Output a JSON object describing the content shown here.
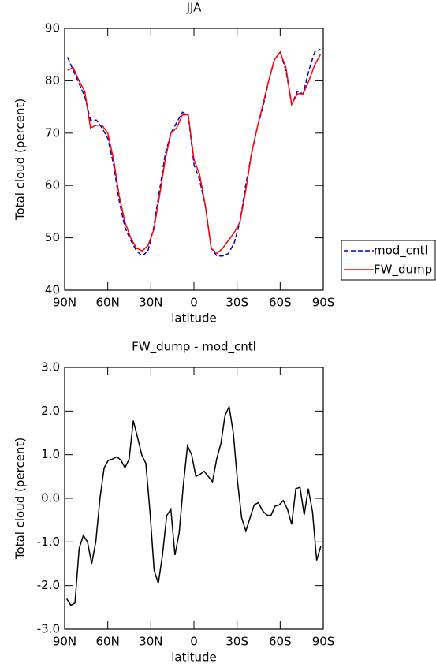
{
  "chart_data": [
    {
      "type": "line",
      "title": "JJA",
      "xlabel": "latitude",
      "ylabel": "Total cloud (percent)",
      "x": [
        88,
        84,
        80,
        76,
        72,
        68,
        64,
        60,
        56,
        52,
        48,
        44,
        40,
        36,
        32,
        28,
        24,
        20,
        16,
        12,
        8,
        4,
        0,
        -4,
        -8,
        -12,
        -16,
        -20,
        -24,
        -28,
        -32,
        -36,
        -40,
        -44,
        -48,
        -52,
        -56,
        -60,
        -64,
        -68,
        -72,
        -76,
        -80,
        -84,
        -88
      ],
      "series": [
        {
          "name": "mod_cntl",
          "color": "#0000cc",
          "dash": true,
          "values": [
            84.5,
            82,
            79.5,
            77,
            72.5,
            72.5,
            71,
            69,
            64,
            57,
            52,
            49.5,
            47.5,
            46.5,
            47.5,
            52,
            59,
            66,
            70,
            72,
            74,
            73.5,
            64,
            61,
            56,
            48,
            46.5,
            46.5,
            47,
            49,
            53,
            60,
            66,
            71,
            75,
            80,
            84,
            85.5,
            82,
            75.5,
            78,
            77.5,
            82,
            85.5,
            86
          ]
        },
        {
          "name": "FW_dump",
          "color": "#ff0000",
          "dash": false,
          "values": [
            82,
            82.5,
            80,
            78,
            71,
            71.5,
            71.5,
            70,
            65,
            58,
            53,
            50,
            48,
            47.5,
            48.5,
            51.5,
            58,
            65,
            70,
            71,
            73.5,
            73.5,
            65,
            62,
            56,
            48,
            47,
            48,
            49.5,
            51,
            53,
            59,
            66,
            71,
            75.5,
            80,
            84,
            85.5,
            82.5,
            75.5,
            77.5,
            77.5,
            80,
            83,
            85
          ]
        }
      ],
      "xlim": [
        90,
        -90
      ],
      "xticks": [
        {
          "value": 90,
          "label": "90N"
        },
        {
          "value": 60,
          "label": "60N"
        },
        {
          "value": 30,
          "label": "30N"
        },
        0,
        {
          "value": -30,
          "label": "30S"
        },
        {
          "value": -60,
          "label": "60S"
        },
        {
          "value": -90,
          "label": "90S"
        }
      ],
      "ylim": [
        40,
        90
      ],
      "yticks": [
        40,
        50,
        60,
        70,
        80,
        90
      ],
      "legend": "outside right"
    },
    {
      "type": "line",
      "title": "FW_dump - mod_cntl",
      "xlabel": "latitude",
      "ylabel": "Total cloud (percent)",
      "x": [
        88.6,
        85.7,
        82.8,
        79.9,
        77,
        74.1,
        71.2,
        68.3,
        65.4,
        62.5,
        59.6,
        56.7,
        53.8,
        50.9,
        48,
        45.1,
        42.2,
        39.3,
        36.4,
        33.5,
        30.6,
        27.7,
        24.8,
        21.9,
        19,
        16.1,
        13.2,
        10.3,
        7.4,
        4.5,
        1.6,
        -1.3,
        -4.2,
        -7.1,
        -10,
        -12.9,
        -15.8,
        -18.7,
        -21.6,
        -24.5,
        -27.4,
        -30.3,
        -33.2,
        -36.1,
        -39,
        -41.9,
        -44.8,
        -47.7,
        -50.6,
        -53.5,
        -56.4,
        -59.3,
        -62.2,
        -65.1,
        -68,
        -70.9,
        -73.8,
        -76.7,
        -79.6,
        -82.5,
        -85.4,
        -88.3
      ],
      "series": [
        {
          "name": null,
          "color": "#000000",
          "dash": false,
          "values": [
            -2.3,
            -2.45,
            -2.4,
            -1.15,
            -0.85,
            -1.0,
            -1.5,
            -1.0,
            0,
            0.7,
            0.87,
            0.9,
            0.95,
            0.88,
            0.7,
            0.9,
            1.78,
            1.4,
            1.0,
            0.8,
            -0.3,
            -1.65,
            -1.95,
            -1.3,
            -0.4,
            -0.25,
            -1.3,
            -0.8,
            0.3,
            1.2,
            1.0,
            0.5,
            0.55,
            0.62,
            0.5,
            0.38,
            0.9,
            1.25,
            1.9,
            2.1,
            1.5,
            0.4,
            -0.45,
            -0.75,
            -0.45,
            -0.15,
            -0.1,
            -0.28,
            -0.38,
            -0.4,
            -0.18,
            -0.15,
            -0.05,
            -0.25,
            -0.6,
            0.22,
            0.25,
            -0.38,
            0.22,
            -0.3,
            -1.42,
            -1.1
          ]
        }
      ],
      "xlim": [
        90,
        -90
      ],
      "xticks": [
        {
          "value": 90,
          "label": "90N"
        },
        {
          "value": 60,
          "label": "60N"
        },
        {
          "value": 30,
          "label": "30N"
        },
        0,
        {
          "value": -30,
          "label": "30S"
        },
        {
          "value": -60,
          "label": "60S"
        },
        {
          "value": -90,
          "label": "90S"
        }
      ],
      "ylim": [
        -3,
        3
      ],
      "yticks": [
        {
          "value": -3,
          "label": "-3.0"
        },
        {
          "value": -2,
          "label": "-2.0"
        },
        {
          "value": -1,
          "label": "-1.0"
        },
        {
          "value": 0,
          "label": "0.0"
        },
        {
          "value": 1,
          "label": "1.0"
        },
        {
          "value": 2,
          "label": "2.0"
        },
        {
          "value": 3,
          "label": "3.0"
        }
      ]
    }
  ]
}
